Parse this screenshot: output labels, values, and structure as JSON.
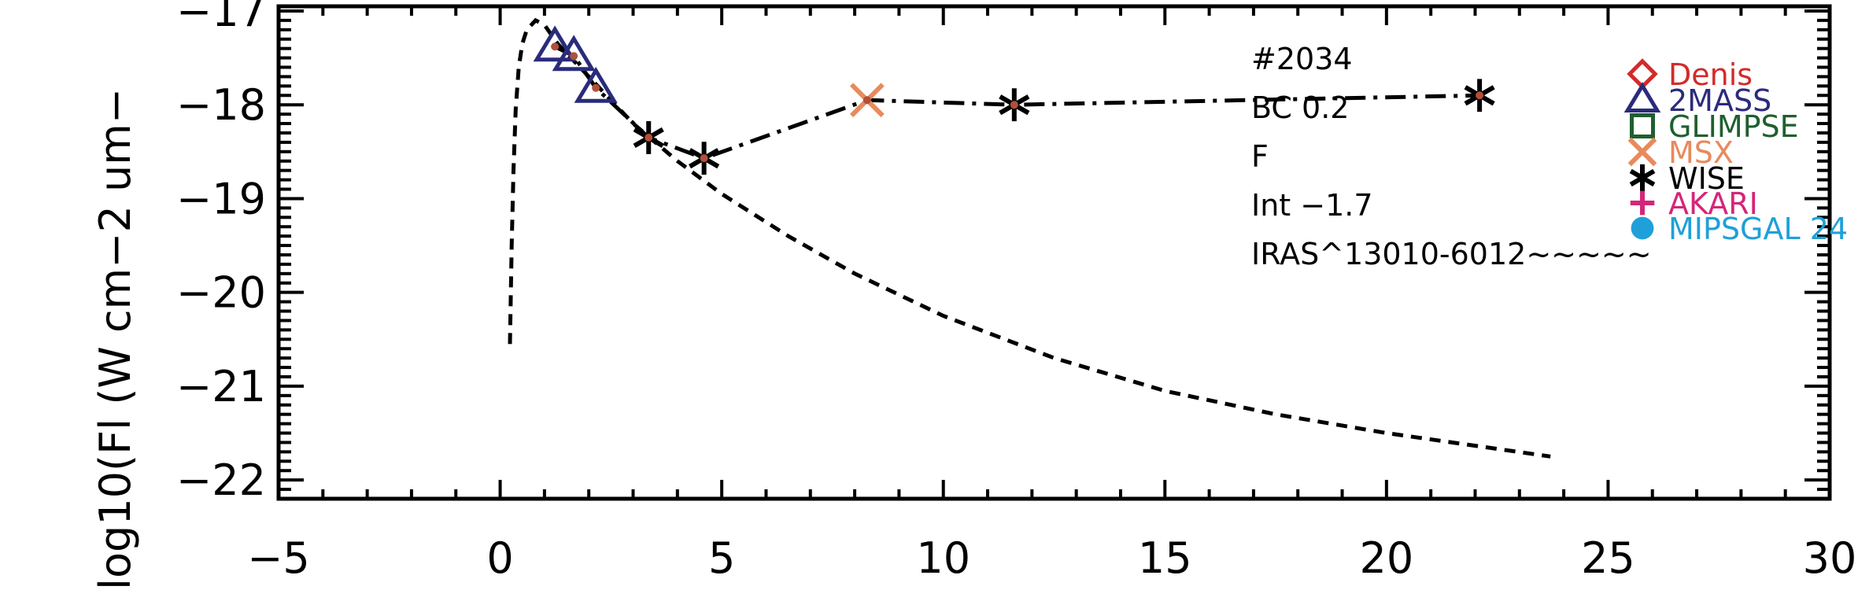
{
  "chart_data": {
    "type": "scatter",
    "ylabel": "log10(Fl (W cm−2 um−",
    "xlabel": "",
    "xlim": [
      -5,
      30
    ],
    "ylim": [
      -22.2,
      -16.95
    ],
    "x_ticks": [
      -5,
      0,
      5,
      10,
      15,
      20,
      25,
      30
    ],
    "x_tick_labels": [
      "−5",
      "0",
      "5",
      "10",
      "15",
      "20",
      "25",
      "30"
    ],
    "y_ticks": [
      -17,
      -18,
      -19,
      -20,
      -21,
      -22
    ],
    "y_tick_labels": [
      "−17",
      "−18",
      "−19",
      "−20",
      "−21",
      "−22"
    ],
    "annotations": [
      "#2034",
      "BC 0.2",
      "F",
      "Int −1.7",
      "IRAS^13010-6012~~~~~"
    ],
    "legend": {
      "position": "right",
      "entries": [
        {
          "name": "Denis",
          "marker": "diamond",
          "color": "#d42a2a"
        },
        {
          "name": "2MASS",
          "marker": "triangle",
          "color": "#2b2b7c"
        },
        {
          "name": "GLIMPSE",
          "marker": "square",
          "color": "#1f5f2f"
        },
        {
          "name": "MSX",
          "marker": "x",
          "color": "#e88a5c"
        },
        {
          "name": "WISE",
          "marker": "asterisk",
          "color": "#000000"
        },
        {
          "name": "AKARI",
          "marker": "plus",
          "color": "#d4267a"
        },
        {
          "name": "MIPSGAL 24",
          "marker": "circle",
          "color": "#1fa0d8"
        }
      ]
    },
    "series": [
      {
        "name": "2MASS",
        "marker": "triangle",
        "color": "#2b2b7c",
        "x": [
          1.235,
          1.662,
          2.159
        ],
        "y": [
          -17.38,
          -17.48,
          -17.82
        ]
      },
      {
        "name": "WISE",
        "marker": "asterisk",
        "color": "#000000",
        "x": [
          3.35,
          4.6,
          11.6,
          22.1
        ],
        "y": [
          -18.35,
          -18.57,
          -18.0,
          -17.9
        ]
      },
      {
        "name": "MSX",
        "marker": "x",
        "color": "#e88a5c",
        "x": [
          8.28
        ],
        "y": [
          -17.95
        ]
      },
      {
        "name": "",
        "style": "dash-dot",
        "color": "#000000",
        "x": [
          1.235,
          1.662,
          2.159,
          3.35,
          4.6,
          8.28,
          11.6,
          22.1
        ],
        "y": [
          -17.38,
          -17.48,
          -17.82,
          -18.35,
          -18.57,
          -17.95,
          -18.0,
          -17.9
        ]
      },
      {
        "name": "",
        "style": "dashed",
        "color": "#000000",
        "x": [
          0.22,
          0.26,
          0.3,
          0.35,
          0.42,
          0.5,
          0.6,
          0.8,
          1.0,
          1.3,
          1.7,
          2.2,
          3.0,
          4.0,
          5.0,
          6.5,
          8.0,
          10.0,
          12.5,
          15.0,
          17.5,
          20.0,
          23.7
        ],
        "y": [
          -20.55,
          -19.5,
          -18.7,
          -18.05,
          -17.6,
          -17.35,
          -17.2,
          -17.1,
          -17.15,
          -17.35,
          -17.55,
          -17.8,
          -18.2,
          -18.6,
          -18.95,
          -19.4,
          -19.8,
          -20.25,
          -20.7,
          -21.05,
          -21.3,
          -21.5,
          -21.75
        ]
      }
    ]
  }
}
